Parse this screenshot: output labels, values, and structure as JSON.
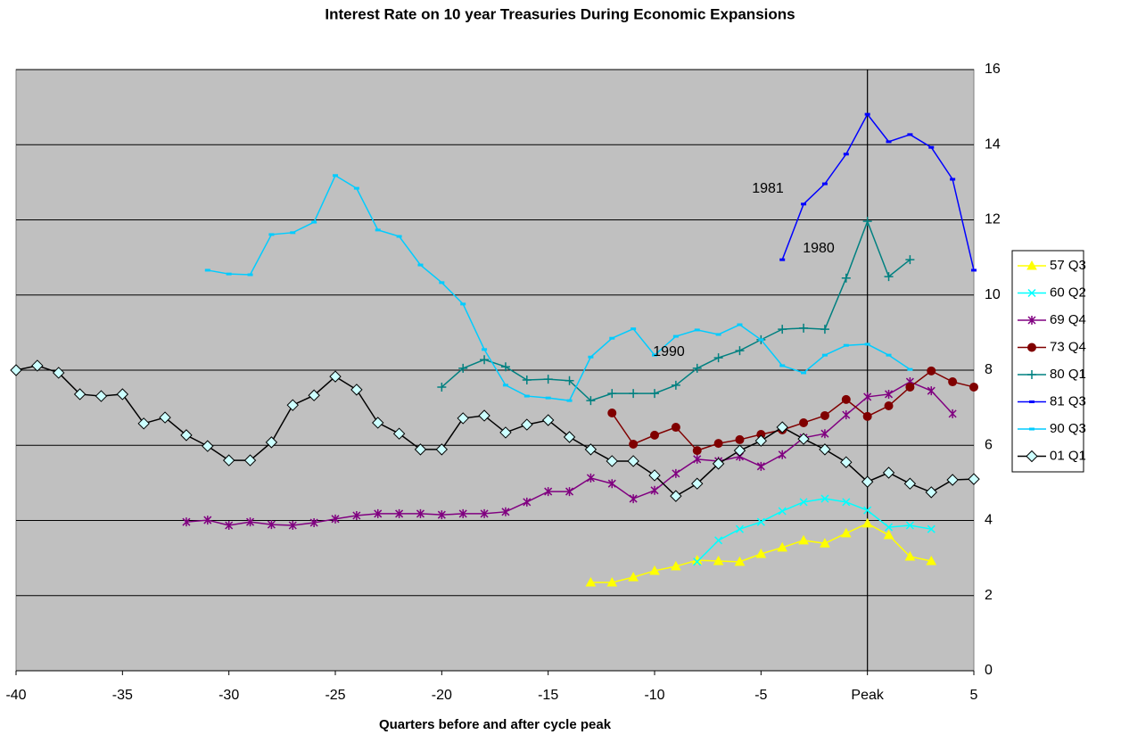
{
  "chart_data": {
    "type": "line",
    "title": "Interest Rate on 10 year Treasuries During Economic Expansions",
    "x_label": "Quarters before and after cycle peak",
    "xlim": [
      -40,
      5
    ],
    "xticks": [
      -40,
      -35,
      -30,
      -25,
      -20,
      -15,
      -10,
      -5,
      {
        "value": 0,
        "label": "Peak"
      },
      5
    ],
    "ylim": [
      0,
      16
    ],
    "yticks": [
      0,
      2,
      4,
      6,
      8,
      10,
      12,
      14,
      16
    ],
    "grid": true,
    "legend": "right",
    "annotations": [
      "1981",
      "1980",
      "1990"
    ],
    "series": [
      {
        "name": "57 Q3",
        "color": "#ffff00",
        "marker": "triangle",
        "x": [
          -13,
          -12,
          -11,
          -10,
          -9,
          -8,
          -7,
          -6,
          -5,
          -4,
          -3,
          -2,
          -1,
          0,
          1,
          2,
          3
        ],
        "values": [
          2.35,
          2.35,
          2.49,
          2.66,
          2.78,
          2.94,
          2.92,
          2.9,
          3.11,
          3.28,
          3.47,
          3.39,
          3.66,
          3.92,
          3.61,
          3.04,
          2.92
        ]
      },
      {
        "name": "60 Q2",
        "color": "#00ffff",
        "marker": "x",
        "x": [
          -8,
          -7,
          -6,
          -5,
          -4,
          -3,
          -2,
          -1,
          0,
          1,
          2,
          3
        ],
        "values": [
          2.9,
          3.47,
          3.77,
          3.96,
          4.25,
          4.49,
          4.58,
          4.49,
          4.27,
          3.82,
          3.87,
          3.77
        ]
      },
      {
        "name": "69 Q4",
        "color": "#800080",
        "marker": "asterisk",
        "x": [
          -32,
          -31,
          -30,
          -29,
          -28,
          -27,
          -26,
          -25,
          -24,
          -23,
          -22,
          -21,
          -20,
          -19,
          -18,
          -17,
          -16,
          -15,
          -14,
          -13,
          -12,
          -11,
          -10,
          -9,
          -8,
          -7,
          -6,
          -5,
          -4,
          -3,
          -2,
          -1,
          0,
          1,
          2,
          3,
          4
        ],
        "values": [
          3.96,
          4.01,
          3.87,
          3.96,
          3.89,
          3.87,
          3.94,
          4.04,
          4.13,
          4.18,
          4.18,
          4.18,
          4.15,
          4.18,
          4.18,
          4.23,
          4.49,
          4.77,
          4.77,
          5.13,
          4.98,
          4.58,
          4.8,
          5.25,
          5.63,
          5.58,
          5.7,
          5.44,
          5.75,
          6.2,
          6.31,
          6.81,
          7.29,
          7.36,
          7.69,
          7.45,
          6.84
        ]
      },
      {
        "name": "73 Q4",
        "color": "#800000",
        "marker": "circle",
        "x": [
          -12,
          -11,
          -10,
          -9,
          -8,
          -7,
          -6,
          -5,
          -4,
          -3,
          -2,
          -1,
          0,
          1,
          2,
          3,
          4,
          5
        ],
        "values": [
          6.86,
          6.03,
          6.27,
          6.48,
          5.86,
          6.05,
          6.15,
          6.29,
          6.41,
          6.6,
          6.79,
          7.22,
          6.77,
          7.05,
          7.55,
          7.98,
          7.69,
          7.55
        ]
      },
      {
        "name": "80 Q1",
        "color": "#008080",
        "marker": "plus",
        "x": [
          -20,
          -19,
          -18,
          -17,
          -16,
          -15,
          -14,
          -13,
          -12,
          -11,
          -10,
          -9,
          -8,
          -7,
          -6,
          -5,
          -4,
          -3,
          -2,
          -1,
          0,
          1,
          2
        ],
        "values": [
          7.55,
          8.05,
          8.28,
          8.09,
          7.74,
          7.76,
          7.72,
          7.19,
          7.38,
          7.38,
          7.38,
          7.6,
          8.05,
          8.33,
          8.52,
          8.81,
          9.09,
          9.12,
          9.09,
          10.45,
          11.96,
          10.49,
          10.94
        ]
      },
      {
        "name": "81 Q3",
        "color": "#0000ff",
        "marker": "dash",
        "x": [
          -4,
          -3,
          -2,
          -1,
          0,
          1,
          2,
          3,
          4,
          5
        ],
        "values": [
          10.94,
          12.42,
          12.96,
          13.75,
          14.81,
          14.08,
          14.27,
          13.93,
          13.08,
          10.66
        ]
      },
      {
        "name": "90 Q3",
        "color": "#00ccff",
        "marker": "dash",
        "x": [
          -31,
          -30,
          -29,
          -28,
          -27,
          -26,
          -25,
          -24,
          -23,
          -22,
          -21,
          -20,
          -19,
          -18,
          -17,
          -16,
          -15,
          -14,
          -13,
          -12,
          -11,
          -10,
          -9,
          -8,
          -7,
          -6,
          -5,
          -4,
          -3,
          -2,
          -1,
          0,
          1,
          2
        ],
        "values": [
          10.66,
          10.56,
          10.54,
          11.61,
          11.66,
          11.94,
          13.18,
          12.84,
          11.73,
          11.56,
          10.8,
          10.33,
          9.76,
          8.55,
          7.6,
          7.31,
          7.26,
          7.19,
          8.35,
          8.85,
          9.1,
          8.4,
          8.9,
          9.07,
          8.95,
          9.21,
          8.81,
          8.12,
          7.93,
          8.4,
          8.66,
          8.69,
          8.4,
          8.02
        ]
      },
      {
        "name": "01 Q1",
        "color": "#000000",
        "marker": "diamond",
        "x": [
          -40,
          -39,
          -38,
          -37,
          -36,
          -35,
          -34,
          -33,
          -32,
          -31,
          -30,
          -29,
          -28,
          -27,
          -26,
          -25,
          -24,
          -23,
          -22,
          -21,
          -20,
          -19,
          -18,
          -17,
          -16,
          -15,
          -14,
          -13,
          -12,
          -11,
          -10,
          -9,
          -8,
          -7,
          -6,
          -5,
          -4,
          -3,
          -2,
          -1,
          0,
          1,
          2,
          3,
          4,
          5
        ],
        "values": [
          8.0,
          8.12,
          7.93,
          7.36,
          7.31,
          7.36,
          6.58,
          6.74,
          6.27,
          5.98,
          5.6,
          5.6,
          6.08,
          7.07,
          7.33,
          7.83,
          7.48,
          6.6,
          6.31,
          5.89,
          5.89,
          6.72,
          6.79,
          6.34,
          6.55,
          6.67,
          6.22,
          5.89,
          5.58,
          5.58,
          5.2,
          4.65,
          4.98,
          5.51,
          5.86,
          6.12,
          6.48,
          6.17,
          5.89,
          5.55,
          5.03,
          5.27,
          4.98,
          4.75,
          5.08,
          5.1
        ]
      }
    ]
  }
}
